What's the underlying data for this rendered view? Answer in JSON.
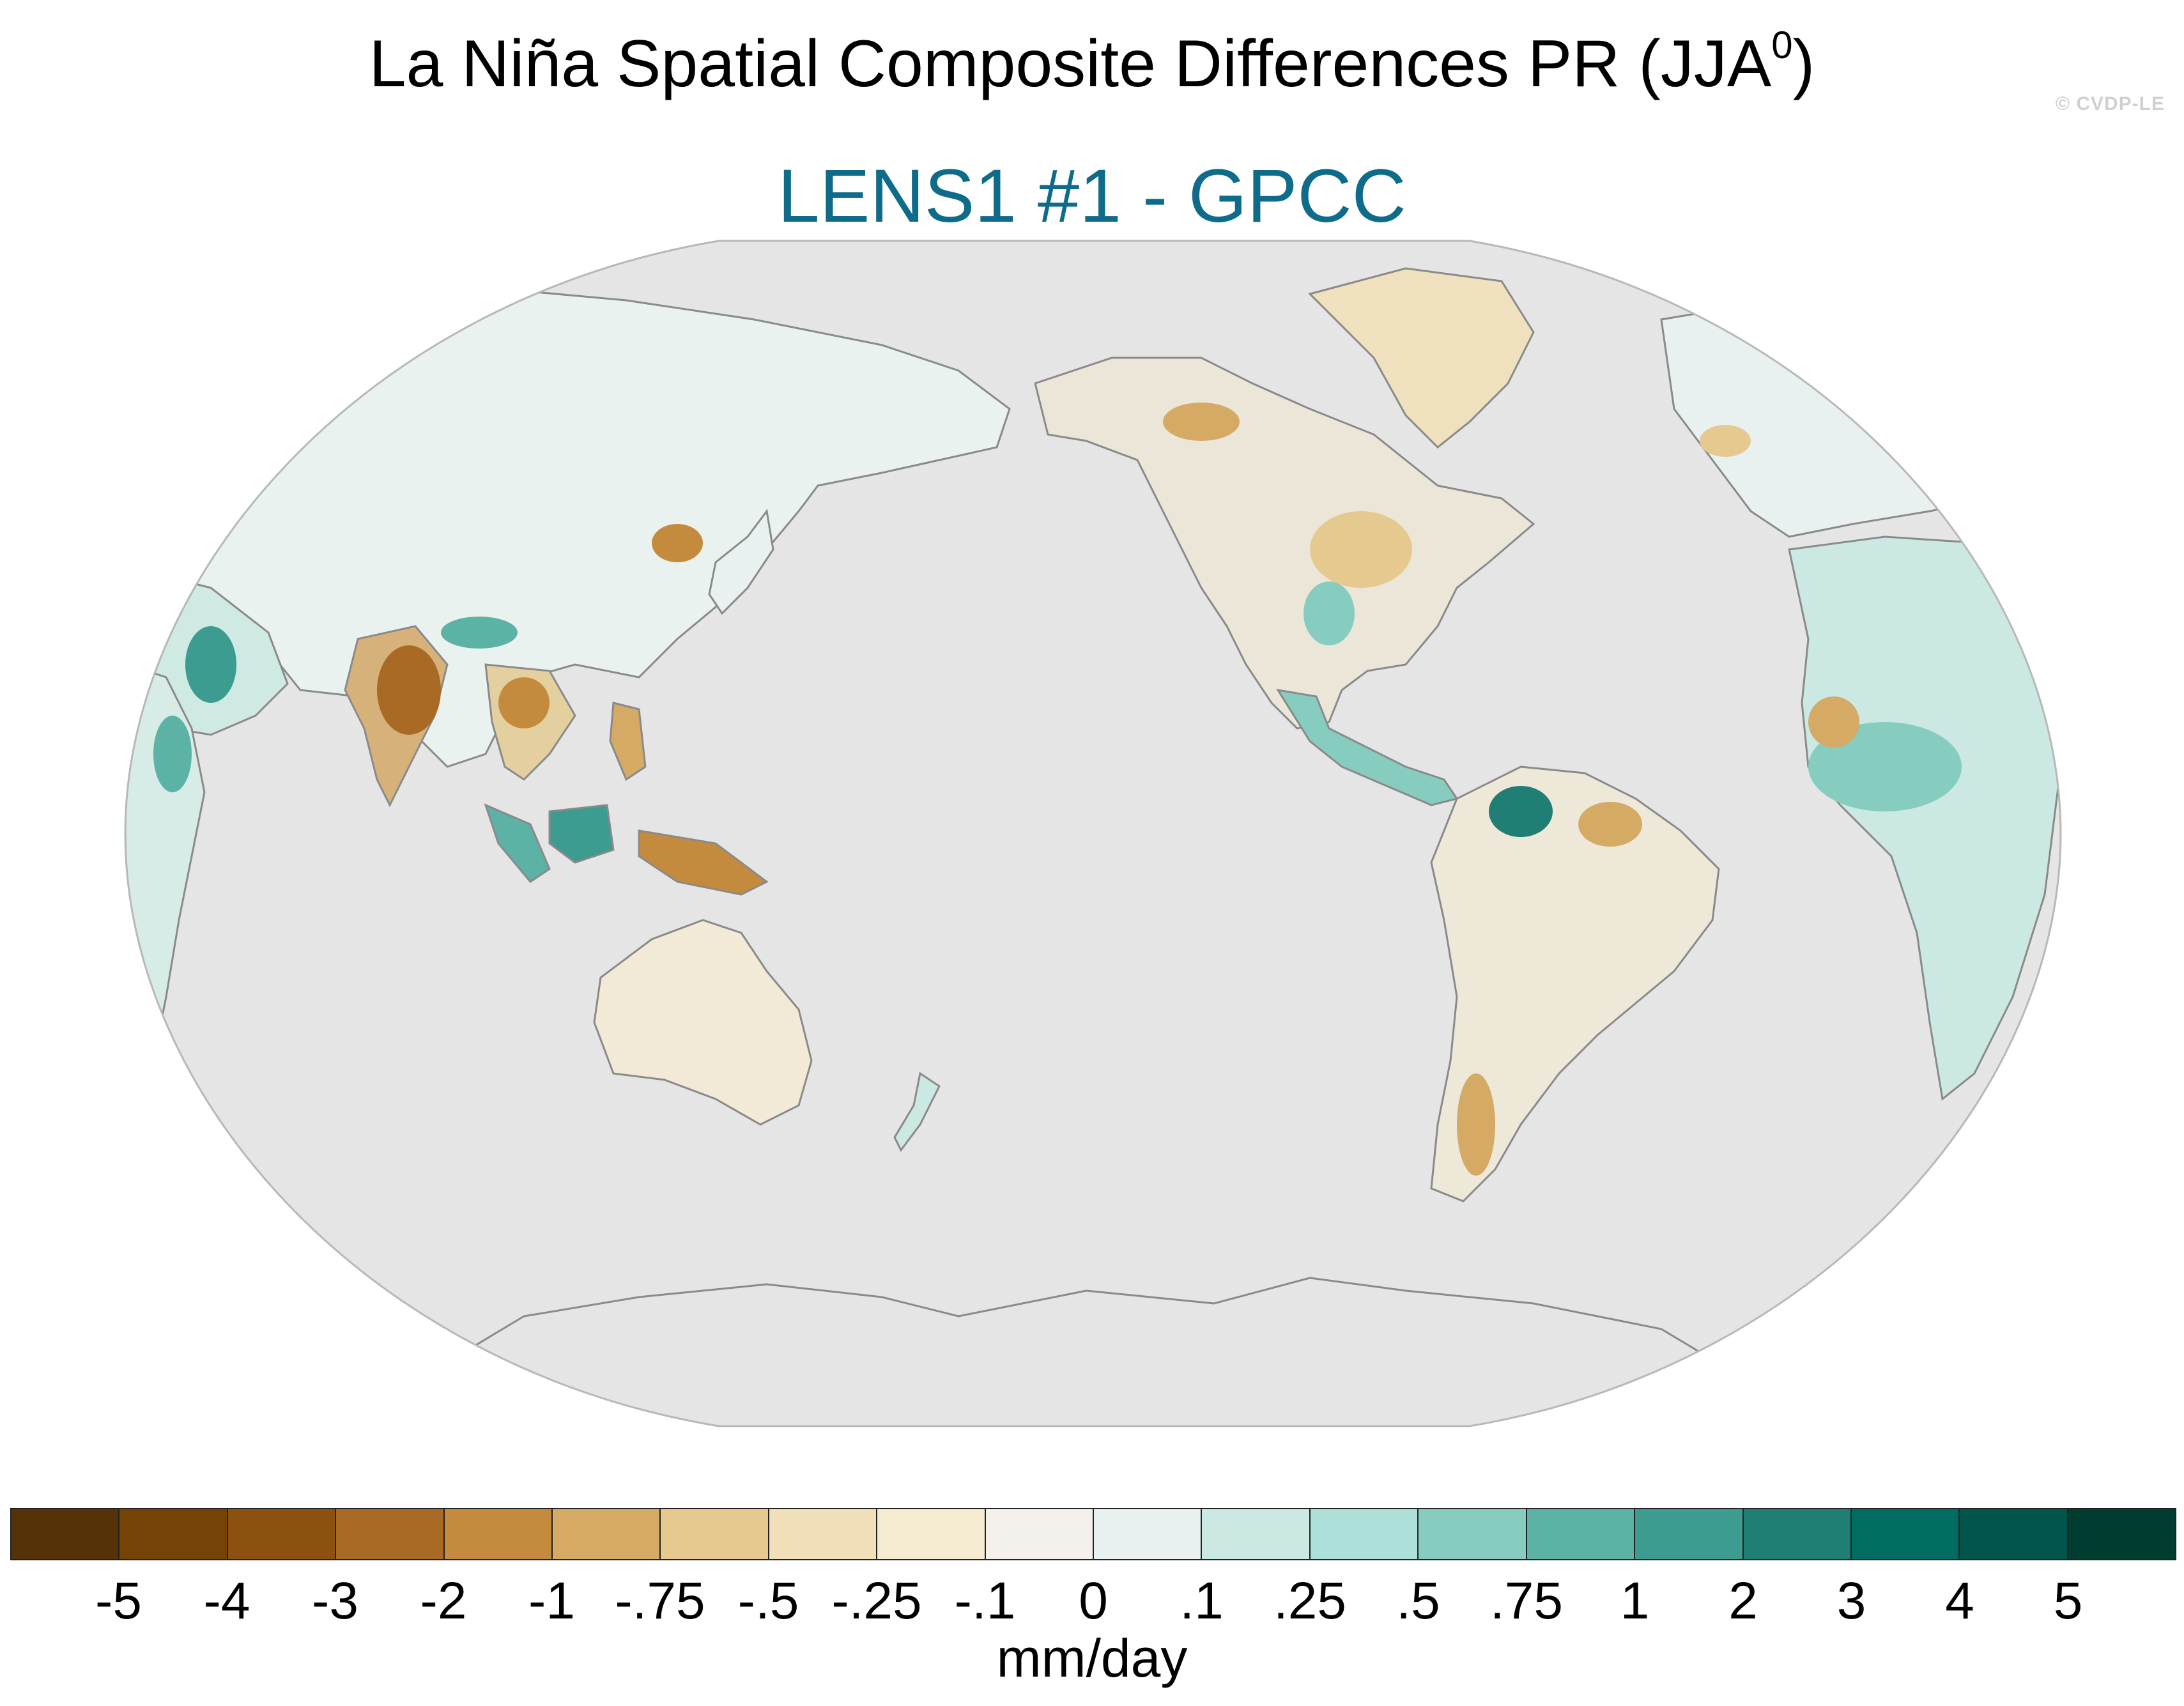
{
  "header": {
    "title_main": "La Niña Spatial Composite Differences PR (JJA",
    "title_sup": "0",
    "title_close": ")",
    "subtitle": "LENS1 #1 - GPCC",
    "watermark": "© CVDP-LE"
  },
  "map": {
    "projection": "robinson-like, pacific-centered",
    "ocean_color": "#e5e5e5",
    "coast_color": "#8a8a8a"
  },
  "colorbar": {
    "colors": [
      "#553208",
      "#764307",
      "#8c5110",
      "#a86a24",
      "#c48b3e",
      "#d4aa64",
      "#e6c98f",
      "#f0dfb8",
      "#f5ebd0",
      "#f4f1ec",
      "#e8f1ef",
      "#cbe8e3",
      "#ade0d8",
      "#86cdbf",
      "#5cb2a4",
      "#3c9c8f",
      "#1f7f75",
      "#006c62",
      "#02554b",
      "#003c30"
    ],
    "labels": [
      "-5",
      "-4",
      "-3",
      "-2",
      "-1",
      "-.75",
      "-.5",
      "-.25",
      "-.1",
      "0",
      ".1",
      ".25",
      ".5",
      ".75",
      "1",
      "2",
      "3",
      "4",
      "5"
    ],
    "units": "mm/day"
  }
}
